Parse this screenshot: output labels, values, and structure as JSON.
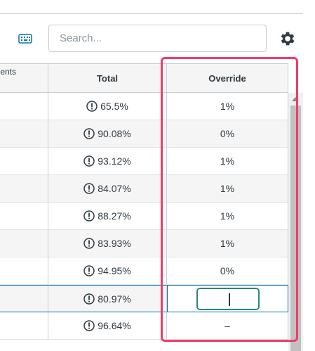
{
  "toolbar": {
    "keyboard_icon": "keyboard-icon",
    "search_placeholder": "Search...",
    "settings_icon": "gear-icon"
  },
  "grid": {
    "columns": [
      "ents",
      "Total",
      "Override"
    ],
    "rows": [
      {
        "total": "65.5%",
        "override": "1%"
      },
      {
        "total": "90.08%",
        "override": "0%"
      },
      {
        "total": "93.12%",
        "override": "1%"
      },
      {
        "total": "84.07%",
        "override": "1%"
      },
      {
        "total": "88.27%",
        "override": "1%"
      },
      {
        "total": "83.93%",
        "override": "1%"
      },
      {
        "total": "94.95%",
        "override": "0%"
      },
      {
        "total": "80.97%",
        "override": ""
      },
      {
        "total": "96.64%",
        "override": "–"
      }
    ]
  },
  "colors": {
    "highlight": "#ef3d6a",
    "active_border": "#0374b5",
    "edit_border": "#2a8a74"
  }
}
